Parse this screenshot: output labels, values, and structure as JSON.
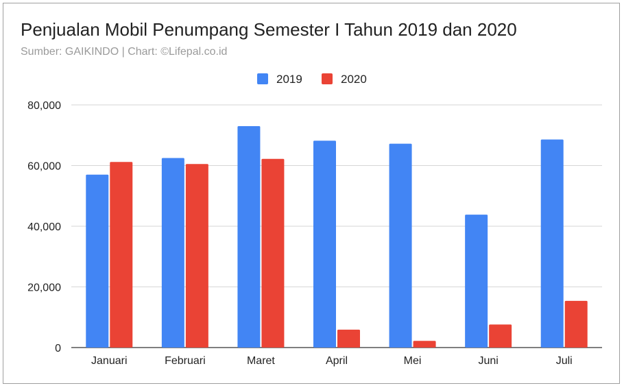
{
  "chart_data": {
    "type": "bar",
    "title": "Penjualan Mobil Penumpang Semester I Tahun 2019 dan 2020",
    "subtitle": "Sumber: GAIKINDO | Chart: ©Lifepal.co.id",
    "categories": [
      "Januari",
      "Februari",
      "Maret",
      "April",
      "Mei",
      "Juni",
      "Juli"
    ],
    "series": [
      {
        "name": "2019",
        "color": "#4285f4",
        "values": [
          57000,
          62500,
          73000,
          68200,
          67200,
          43800,
          68600
        ]
      },
      {
        "name": "2020",
        "color": "#ea4335",
        "values": [
          61200,
          60500,
          62200,
          5900,
          2200,
          7600,
          15400
        ]
      }
    ],
    "yticks": [
      "0",
      "20,000",
      "40,000",
      "60,000",
      "80,000"
    ],
    "ytick_values": [
      0,
      20000,
      40000,
      60000,
      80000
    ],
    "ylim": [
      0,
      80000
    ],
    "grid": true,
    "legend_position": "top-center"
  }
}
